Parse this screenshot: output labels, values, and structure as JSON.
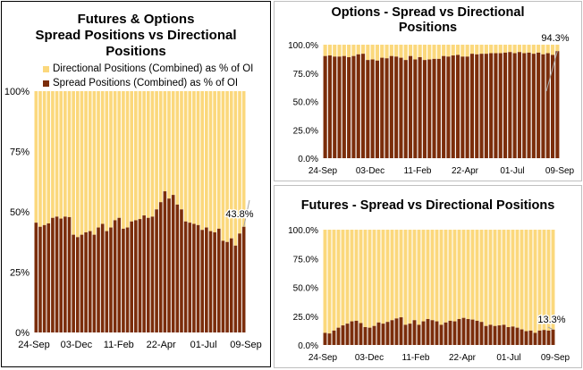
{
  "colors": {
    "spread": "#7b2d0b",
    "directional": "#fbd87c",
    "leader": "#a6a6a6"
  },
  "chart_data": [
    {
      "id": "combined",
      "type": "bar",
      "stacked": true,
      "title": [
        "Futures & Options",
        "Spread Positions vs Directional",
        "Positions"
      ],
      "legend": [
        "Directional Positions (Combined) as % of OI",
        "Spread Positions (Combined) as % of OI"
      ],
      "legend_position": "top",
      "series_names": [
        "Spread Positions (Combined) as % of OI",
        "Directional Positions (Combined) as % of OI"
      ],
      "x_tick_labels": [
        "24-Sep",
        "03-Dec",
        "11-Feb",
        "22-Apr",
        "01-Jul",
        "09-Sep"
      ],
      "y_tick_labels": [
        "0%",
        "25%",
        "50%",
        "75%",
        "100%"
      ],
      "ylim": [
        0,
        100
      ],
      "spread": [
        45.5,
        43.8,
        44.5,
        45.2,
        47.5,
        48.0,
        47.2,
        48.0,
        47.8,
        40.5,
        39.5,
        40.5,
        41.5,
        42.0,
        40.5,
        43.5,
        45.0,
        42.0,
        43.5,
        46.5,
        47.5,
        43.0,
        43.5,
        46.0,
        46.5,
        47.0,
        48.5,
        47.5,
        48.0,
        51.0,
        54.0,
        58.5,
        55.5,
        57.0,
        53.0,
        51.0,
        46.0,
        45.5,
        45.0,
        44.5,
        42.5,
        43.5,
        42.0,
        41.5,
        43.0,
        38.0,
        37.5,
        39.0,
        36.0,
        41.0,
        43.8
      ],
      "last_value_label": "43.8%"
    },
    {
      "id": "options",
      "type": "bar",
      "stacked": true,
      "title": [
        "Options - Spread vs Directional",
        "Positions"
      ],
      "series_names": [
        "Spread",
        "Directional"
      ],
      "x_tick_labels": [
        "24-Sep",
        "03-Dec",
        "11-Feb",
        "22-Apr",
        "01-Jul",
        "09-Sep"
      ],
      "y_tick_labels": [
        "0.0%",
        "25.0%",
        "50.0%",
        "75.0%",
        "100.0%"
      ],
      "ylim": [
        0,
        100
      ],
      "spread": [
        90.0,
        90.5,
        89.5,
        89.5,
        90.0,
        89.0,
        90.0,
        91.5,
        92.0,
        86.5,
        87.0,
        86.0,
        88.5,
        88.0,
        90.0,
        89.5,
        88.5,
        86.5,
        90.0,
        87.0,
        89.0,
        86.5,
        87.0,
        87.5,
        87.5,
        90.0,
        89.5,
        90.5,
        91.0,
        89.5,
        89.5,
        92.0,
        91.5,
        92.0,
        92.0,
        92.5,
        92.5,
        92.5,
        93.0,
        93.5,
        92.5,
        93.5,
        92.5,
        93.0,
        92.0,
        93.0,
        91.5,
        92.5,
        91.0,
        94.3
      ],
      "last_value_label": "94.3%"
    },
    {
      "id": "futures",
      "type": "bar",
      "stacked": true,
      "title": [
        "Futures - Spread vs Directional Positions"
      ],
      "series_names": [
        "Spread",
        "Directional"
      ],
      "x_tick_labels": [
        "24-Sep",
        "03-Dec",
        "11-Feb",
        "22-Apr",
        "01-Jul",
        "09-Sep"
      ],
      "y_tick_labels": [
        "0.0%",
        "25.0%",
        "50.0%",
        "75.0%",
        "100.0%"
      ],
      "ylim": [
        0,
        100
      ],
      "spread": [
        10.5,
        10.0,
        12.5,
        15.0,
        17.0,
        18.5,
        20.5,
        21.0,
        19.0,
        15.5,
        15.0,
        16.5,
        19.5,
        18.5,
        20.0,
        21.5,
        23.0,
        24.0,
        17.5,
        18.5,
        21.5,
        17.5,
        20.5,
        22.5,
        21.5,
        20.5,
        17.5,
        19.5,
        21.0,
        20.5,
        22.5,
        23.5,
        22.5,
        22.0,
        21.0,
        20.0,
        16.5,
        17.5,
        16.5,
        17.0,
        17.5,
        15.5,
        16.0,
        15.0,
        13.5,
        12.0,
        12.5,
        10.5,
        12.5,
        13.0,
        12.5,
        13.3
      ],
      "last_value_label": "13.3%"
    }
  ]
}
